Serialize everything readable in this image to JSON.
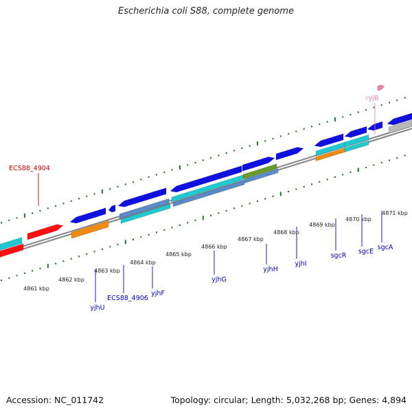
{
  "title": "Escherichia coli S88, complete genome",
  "footer": {
    "accession": "Accession: NC_011742",
    "summary": "Topology: circular; Length: 5,032,268 bp; Genes: 4,894"
  },
  "colors": {
    "background": "#ffffff",
    "backbone": "#8a8a8a",
    "tick": "#1a7a1a",
    "gene_blue": "#1010e0",
    "gene_red": "#ff1010",
    "gene_orange": "#f08a10",
    "gene_cyan": "#20c8d0",
    "gene_steelblue": "#5a8ac8",
    "gene_olive": "#6a9a28",
    "gene_gray": "#b8b8b8",
    "gene_pink": "#f080b0",
    "label_blue": "#0000c0",
    "label_red": "#d00000",
    "label_pink": "#f080b0"
  },
  "kbp_labels": [
    "4861 kbp",
    "4862 kbp",
    "4863 kbp",
    "4864 kbp",
    "4865 kbp",
    "4866 kbp",
    "4867 kbp",
    "4868 kbp",
    "4869 kbp",
    "4870 kbp",
    "4871 kbp"
  ],
  "gene_labels": [
    {
      "text": "ECS88_4904",
      "color": "red"
    },
    {
      "text": "ryjB",
      "color": "pink"
    },
    {
      "text": "yjhU",
      "color": "blue"
    },
    {
      "text": "ECS88_4906",
      "color": "blue"
    },
    {
      "text": "yjhF",
      "color": "blue"
    },
    {
      "text": "yjhG",
      "color": "blue"
    },
    {
      "text": "yjhH",
      "color": "blue"
    },
    {
      "text": "yjhI",
      "color": "blue"
    },
    {
      "text": "sgcR",
      "color": "blue"
    },
    {
      "text": "sgcE",
      "color": "blue"
    },
    {
      "text": "sgcA",
      "color": "blue"
    }
  ]
}
